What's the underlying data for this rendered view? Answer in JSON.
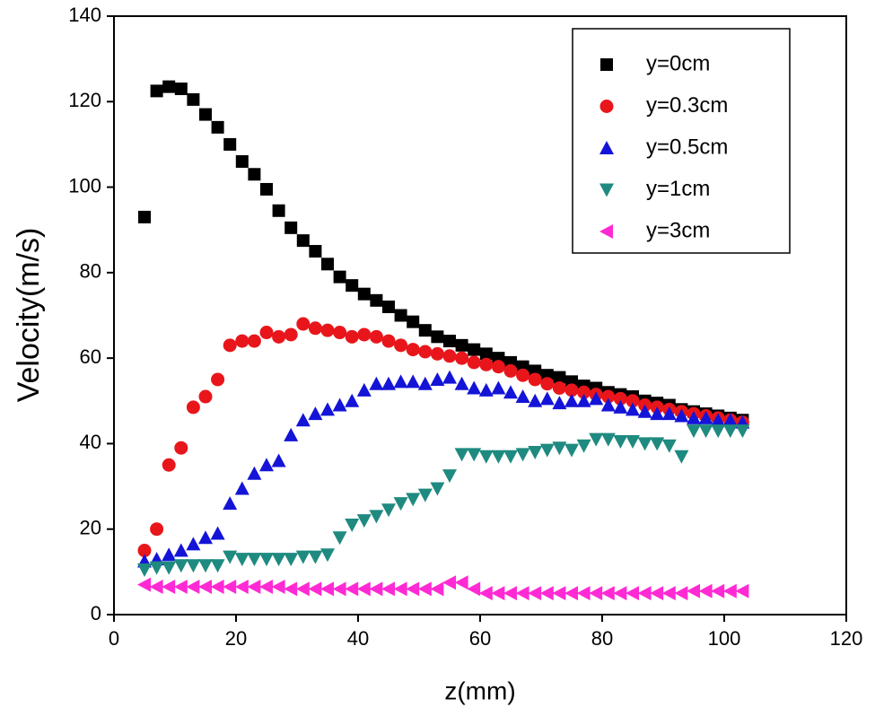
{
  "chart_data": {
    "type": "scatter",
    "xlabel": "z(mm)",
    "ylabel": "Velocity(m/s)",
    "xlim": [
      0,
      120
    ],
    "xticks": [
      0,
      20,
      40,
      60,
      80,
      100,
      120
    ],
    "ylim": [
      0,
      140
    ],
    "yticks": [
      0,
      20,
      40,
      60,
      80,
      100,
      120,
      140
    ],
    "legend": "upper right",
    "x": [
      5,
      7,
      9,
      11,
      13,
      15,
      17,
      19,
      21,
      23,
      25,
      27,
      29,
      31,
      33,
      35,
      37,
      39,
      41,
      43,
      45,
      47,
      49,
      51,
      53,
      55,
      57,
      59,
      61,
      63,
      65,
      67,
      69,
      71,
      73,
      75,
      77,
      79,
      81,
      83,
      85,
      87,
      89,
      91,
      93,
      95,
      97,
      99,
      101,
      103
    ],
    "series": [
      {
        "name": "y=0cm",
        "color": "#000000",
        "marker": "square",
        "values": [
          93,
          122.5,
          123.5,
          123,
          120.5,
          117,
          114,
          110,
          106,
          103,
          99.5,
          94.5,
          90.5,
          87.5,
          85,
          82,
          79,
          77,
          75,
          73.5,
          72,
          70,
          68.5,
          66.5,
          65,
          64,
          63,
          62,
          61,
          60,
          59,
          58,
          57,
          56,
          55.5,
          54.5,
          53.5,
          53,
          52,
          51.5,
          51,
          50,
          49.5,
          49,
          48,
          47.5,
          47,
          46.5,
          46,
          45.5
        ]
      },
      {
        "name": "y=0.3cm",
        "color": "#e8161b",
        "marker": "circle",
        "values": [
          15,
          20,
          35,
          39,
          48.5,
          51,
          55,
          63,
          64,
          64,
          66,
          65,
          65.5,
          68,
          67,
          66.5,
          66,
          65,
          65.5,
          65,
          64,
          63,
          62,
          61.5,
          61,
          60.5,
          60,
          59,
          58.5,
          58,
          57,
          56,
          55,
          54,
          53,
          52.5,
          52,
          51.5,
          51,
          50.5,
          50,
          49,
          48.5,
          48,
          47.5,
          47,
          46.5,
          46,
          45.5,
          45
        ]
      },
      {
        "name": "y=0.5cm",
        "color": "#1414d8",
        "marker": "triangle-up",
        "values": [
          12.5,
          13,
          14,
          15,
          16.5,
          18,
          19,
          26,
          29.5,
          33,
          35,
          36,
          42,
          45.5,
          47,
          48,
          49,
          50,
          52.5,
          54,
          54,
          54.5,
          54.5,
          54,
          55,
          55.5,
          54,
          53,
          52.5,
          53,
          52,
          51,
          50,
          50.5,
          49.5,
          50,
          50,
          50.5,
          49,
          48.5,
          48,
          47.5,
          47,
          47,
          46.5,
          46,
          46,
          45.5,
          45.5,
          45
        ]
      },
      {
        "name": "y=1cm",
        "color": "#1f8a80",
        "marker": "triangle-down",
        "values": [
          10.5,
          11,
          11,
          11.5,
          11.5,
          11.5,
          11.5,
          13.5,
          13,
          13,
          13,
          13,
          13,
          13.5,
          13.5,
          14,
          18,
          21,
          22,
          23,
          24.5,
          26,
          27,
          28,
          29.5,
          32.5,
          37.5,
          37.5,
          37,
          37,
          37,
          37.5,
          38,
          38.5,
          39,
          38.5,
          39.5,
          41,
          41,
          40.5,
          40.5,
          40,
          40,
          39.5,
          37,
          43,
          43,
          43,
          43,
          43
        ]
      },
      {
        "name": "y=3cm",
        "color": "#ff2ad4",
        "marker": "triangle-left",
        "values": [
          7,
          6.5,
          6.5,
          6.5,
          6.5,
          6.5,
          6.5,
          6.5,
          6.5,
          6.5,
          6.5,
          6.5,
          6,
          6,
          6,
          6,
          6,
          6,
          6,
          6,
          6,
          6,
          6,
          6,
          6,
          7.5,
          7.5,
          6,
          5,
          5,
          5,
          5,
          5,
          5,
          5,
          5,
          5,
          5,
          5,
          5,
          5,
          5,
          5,
          5,
          5,
          5.5,
          5.5,
          5.5,
          5.5,
          5.5
        ]
      }
    ]
  }
}
